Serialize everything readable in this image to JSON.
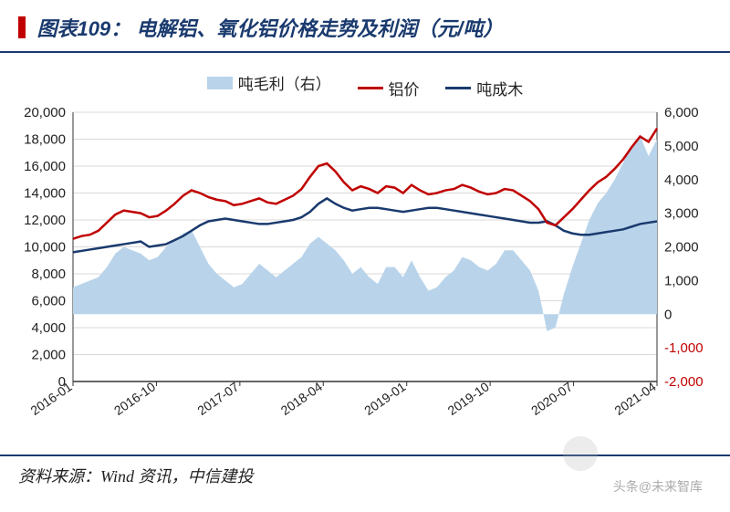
{
  "title_prefix": "图表109：",
  "title": "电解铝、氧化铝价格走势及利润（元/吨）",
  "source": "资料来源：Wind 资讯，中信建投",
  "watermark": "头条@未来智库",
  "legend": {
    "series_area": "吨毛利（右）",
    "series_red": "铝价",
    "series_blue": "吨成木"
  },
  "colors": {
    "title_bar": "#c00000",
    "title_text": "#1a3a6e",
    "border": "#1a3a6e",
    "area_fill": "#b9d4ea",
    "line_red": "#c00000",
    "line_blue": "#1a3a6e",
    "grid": "#d9d9d9",
    "axis": "#333333",
    "neg_label": "#c00000",
    "bg": "#ffffff"
  },
  "chart": {
    "type": "combo_line_area_dual_axis",
    "left_axis": {
      "min": 0,
      "max": 20000,
      "step": 2000,
      "ticks": [
        0,
        2000,
        4000,
        6000,
        8000,
        10000,
        12000,
        14000,
        16000,
        18000,
        20000
      ]
    },
    "right_axis": {
      "min": -2000,
      "max": 6000,
      "step": 1000,
      "ticks": [
        -2000,
        -1000,
        0,
        1000,
        2000,
        3000,
        4000,
        5000,
        6000
      ]
    },
    "x_labels": [
      "2016-01",
      "2016-10",
      "2017-07",
      "2018-04",
      "2019-01",
      "2019-10",
      "2020-07",
      "2021-04"
    ],
    "x_rotate_deg": -35,
    "fontsize_axis": 15,
    "line_width_red": 2.5,
    "line_width_blue": 2.5,
    "n_points": 70,
    "series_red_left": [
      10600,
      10800,
      10900,
      11200,
      11800,
      12400,
      12700,
      12600,
      12500,
      12200,
      12300,
      12700,
      13200,
      13800,
      14200,
      14000,
      13700,
      13500,
      13400,
      13100,
      13200,
      13400,
      13600,
      13300,
      13200,
      13500,
      13800,
      14300,
      15200,
      16000,
      16200,
      15600,
      14800,
      14200,
      14500,
      14300,
      14000,
      14500,
      14400,
      14000,
      14600,
      14200,
      13900,
      14000,
      14200,
      14300,
      14600,
      14400,
      14100,
      13900,
      14000,
      14300,
      14200,
      13800,
      13400,
      12800,
      11800,
      11600,
      12200,
      12800,
      13500,
      14200,
      14800,
      15200,
      15800,
      16500,
      17400,
      18200,
      17800,
      18800
    ],
    "series_blue_left": [
      9600,
      9700,
      9800,
      9900,
      10000,
      10100,
      10200,
      10300,
      10400,
      10000,
      10100,
      10200,
      10500,
      10800,
      11200,
      11600,
      11900,
      12000,
      12100,
      12000,
      11900,
      11800,
      11700,
      11700,
      11800,
      11900,
      12000,
      12200,
      12600,
      13200,
      13600,
      13200,
      12900,
      12700,
      12800,
      12900,
      12900,
      12800,
      12700,
      12600,
      12700,
      12800,
      12900,
      12900,
      12800,
      12700,
      12600,
      12500,
      12400,
      12300,
      12200,
      12100,
      12000,
      11900,
      11800,
      11800,
      11900,
      11600,
      11200,
      11000,
      10900,
      10900,
      11000,
      11100,
      11200,
      11300,
      11500,
      11700,
      11800,
      11900
    ],
    "series_area_right": [
      800,
      900,
      1000,
      1100,
      1400,
      1800,
      2000,
      1900,
      1800,
      1600,
      1700,
      2000,
      2200,
      2400,
      2500,
      2000,
      1500,
      1200,
      1000,
      800,
      900,
      1200,
      1500,
      1300,
      1100,
      1300,
      1500,
      1700,
      2100,
      2300,
      2100,
      1900,
      1600,
      1200,
      1400,
      1100,
      900,
      1400,
      1400,
      1100,
      1600,
      1100,
      700,
      800,
      1100,
      1300,
      1700,
      1600,
      1400,
      1300,
      1500,
      1900,
      1900,
      1600,
      1300,
      700,
      -500,
      -400,
      600,
      1400,
      2100,
      2800,
      3300,
      3600,
      4000,
      4500,
      5000,
      5300,
      4700,
      5200
    ]
  }
}
